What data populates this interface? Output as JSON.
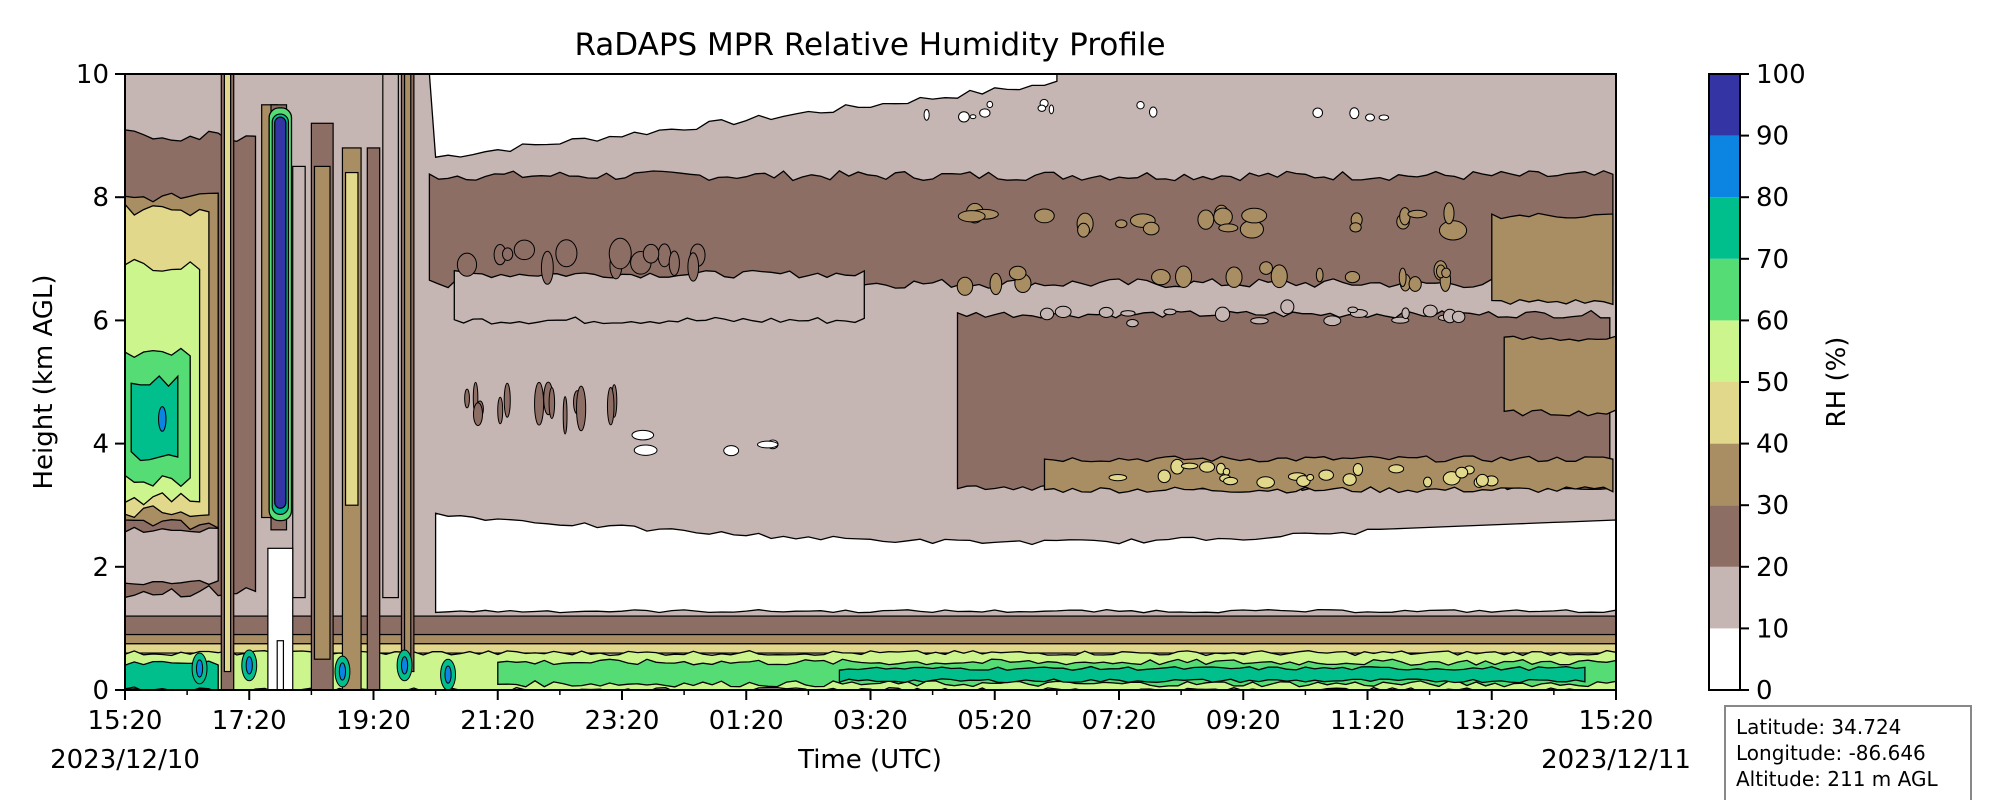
{
  "colors": {
    "rh_0_10": "#ffffff",
    "rh_10_20": "#c5b5b3",
    "rh_20_30": "#8d6e65",
    "rh_30_40": "#a98e64",
    "rh_40_50": "#e2d88b",
    "rh_50_60": "#cdf58e",
    "rh_60_70": "#56dc74",
    "rh_70_80": "#00bf8c",
    "rh_80_90": "#0c84e2",
    "rh_90_100": "#3534a5",
    "contour_line": "#000000"
  },
  "chart_data": {
    "type": "heatmap",
    "title": "RaDAPS MPR Relative Humidity Profile",
    "xlabel": "Time (UTC)",
    "ylabel": "Height (km AGL)",
    "x_ticks": [
      "15:20",
      "17:20",
      "19:20",
      "21:20",
      "23:20",
      "01:20",
      "03:20",
      "05:20",
      "07:20",
      "09:20",
      "11:20",
      "13:20",
      "15:20"
    ],
    "x_range_hours_utc": [
      "2023/12/10 15:20",
      "2023/12/11 15:20"
    ],
    "start_date_label": "2023/12/10",
    "end_date_label": "2023/12/11",
    "y_ticks": [
      0,
      2,
      4,
      6,
      8,
      10
    ],
    "ylim": [
      0,
      10
    ],
    "colorbar": {
      "label": "RH (%)",
      "ticks": [
        0,
        10,
        20,
        30,
        40,
        50,
        60,
        70,
        80,
        90,
        100
      ],
      "levels": [
        0,
        10,
        20,
        30,
        40,
        50,
        60,
        70,
        80,
        90,
        100
      ]
    },
    "regions_description_rh_percent": [
      {
        "time_start": "15:20",
        "time_end": "15:20+24h",
        "height_km": [
          0,
          0.3
        ],
        "rh_range": [
          70,
          80
        ]
      },
      {
        "time_start": "15:20",
        "time_end": "15:20+24h",
        "height_km": [
          0.3,
          0.9
        ],
        "rh_range": [
          50,
          70
        ]
      },
      {
        "time_start": "20:20",
        "time_end": "15:20+24h",
        "height_km": [
          1.3,
          2.8
        ],
        "rh_range": [
          0,
          10
        ]
      },
      {
        "time_start": "20:20",
        "time_end": "15:20+24h",
        "height_km": [
          2.8,
          3.3
        ],
        "rh_range": [
          10,
          20
        ]
      },
      {
        "time_start": "05:20",
        "time_end": "15:20+24h",
        "height_km": [
          3.3,
          3.7
        ],
        "rh_range": [
          30,
          40
        ]
      },
      {
        "time_start": "05:20",
        "time_end": "15:20+24h",
        "height_km": [
          3.7,
          6.0
        ],
        "rh_range": [
          20,
          30
        ]
      },
      {
        "time_start": "20:20",
        "time_end": "05:20",
        "height_km": [
          3.3,
          7.3
        ],
        "rh_range": [
          10,
          20
        ]
      },
      {
        "time_start": "20:20",
        "time_end": "15:20+24h",
        "height_km": [
          6.6,
          8.3
        ],
        "rh_range": [
          20,
          30
        ]
      },
      {
        "time_start": "20:20",
        "time_end": "03:20",
        "height_km": [
          8.4,
          10
        ],
        "rh_range": [
          0,
          10
        ]
      },
      {
        "time_start": "03:20",
        "time_end": "15:20+24h",
        "height_km": [
          8.4,
          10
        ],
        "rh_range": [
          10,
          20
        ]
      },
      {
        "time_start": "17:50",
        "time_end": "18:10",
        "height_km": [
          2.8,
          9.4
        ],
        "rh_range": [
          90,
          100
        ]
      },
      {
        "time_start": "15:20",
        "time_end": "17:00",
        "height_km": [
          3.0,
          8.0
        ],
        "rh_range": [
          50,
          70
        ]
      }
    ]
  },
  "info_box": {
    "latitude": "Latitude: 34.724",
    "longitude": "Longitude: -86.646",
    "altitude": "Altitude: 211 m AGL"
  }
}
